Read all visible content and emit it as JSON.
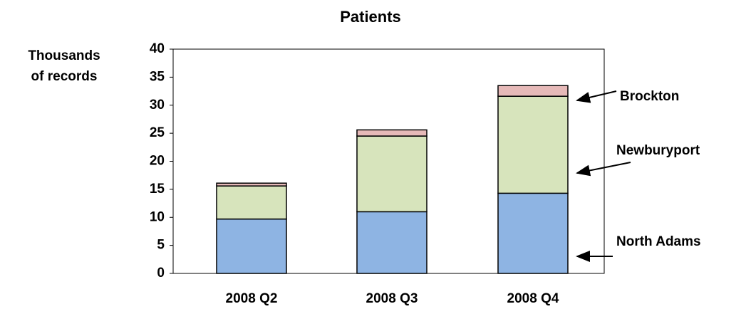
{
  "chart_data": {
    "type": "stacked_bar",
    "title": "Patients",
    "ylabel": "Thousands of records",
    "categories": [
      "2008 Q2",
      "2008 Q3",
      "2008 Q4"
    ],
    "series": [
      {
        "name": "North Adams",
        "color": "#8eb4e3",
        "values": [
          9.7,
          11.0,
          14.3
        ]
      },
      {
        "name": "Newburyport",
        "color": "#d7e4bc",
        "values": [
          5.9,
          13.5,
          17.3
        ]
      },
      {
        "name": "Brockton",
        "color": "#e6b9b8",
        "values": [
          0.5,
          1.1,
          1.9
        ]
      }
    ],
    "ylim": [
      0,
      40
    ],
    "yticks": [
      0,
      5,
      10,
      15,
      20,
      25,
      30,
      35,
      40
    ],
    "grid": false
  }
}
